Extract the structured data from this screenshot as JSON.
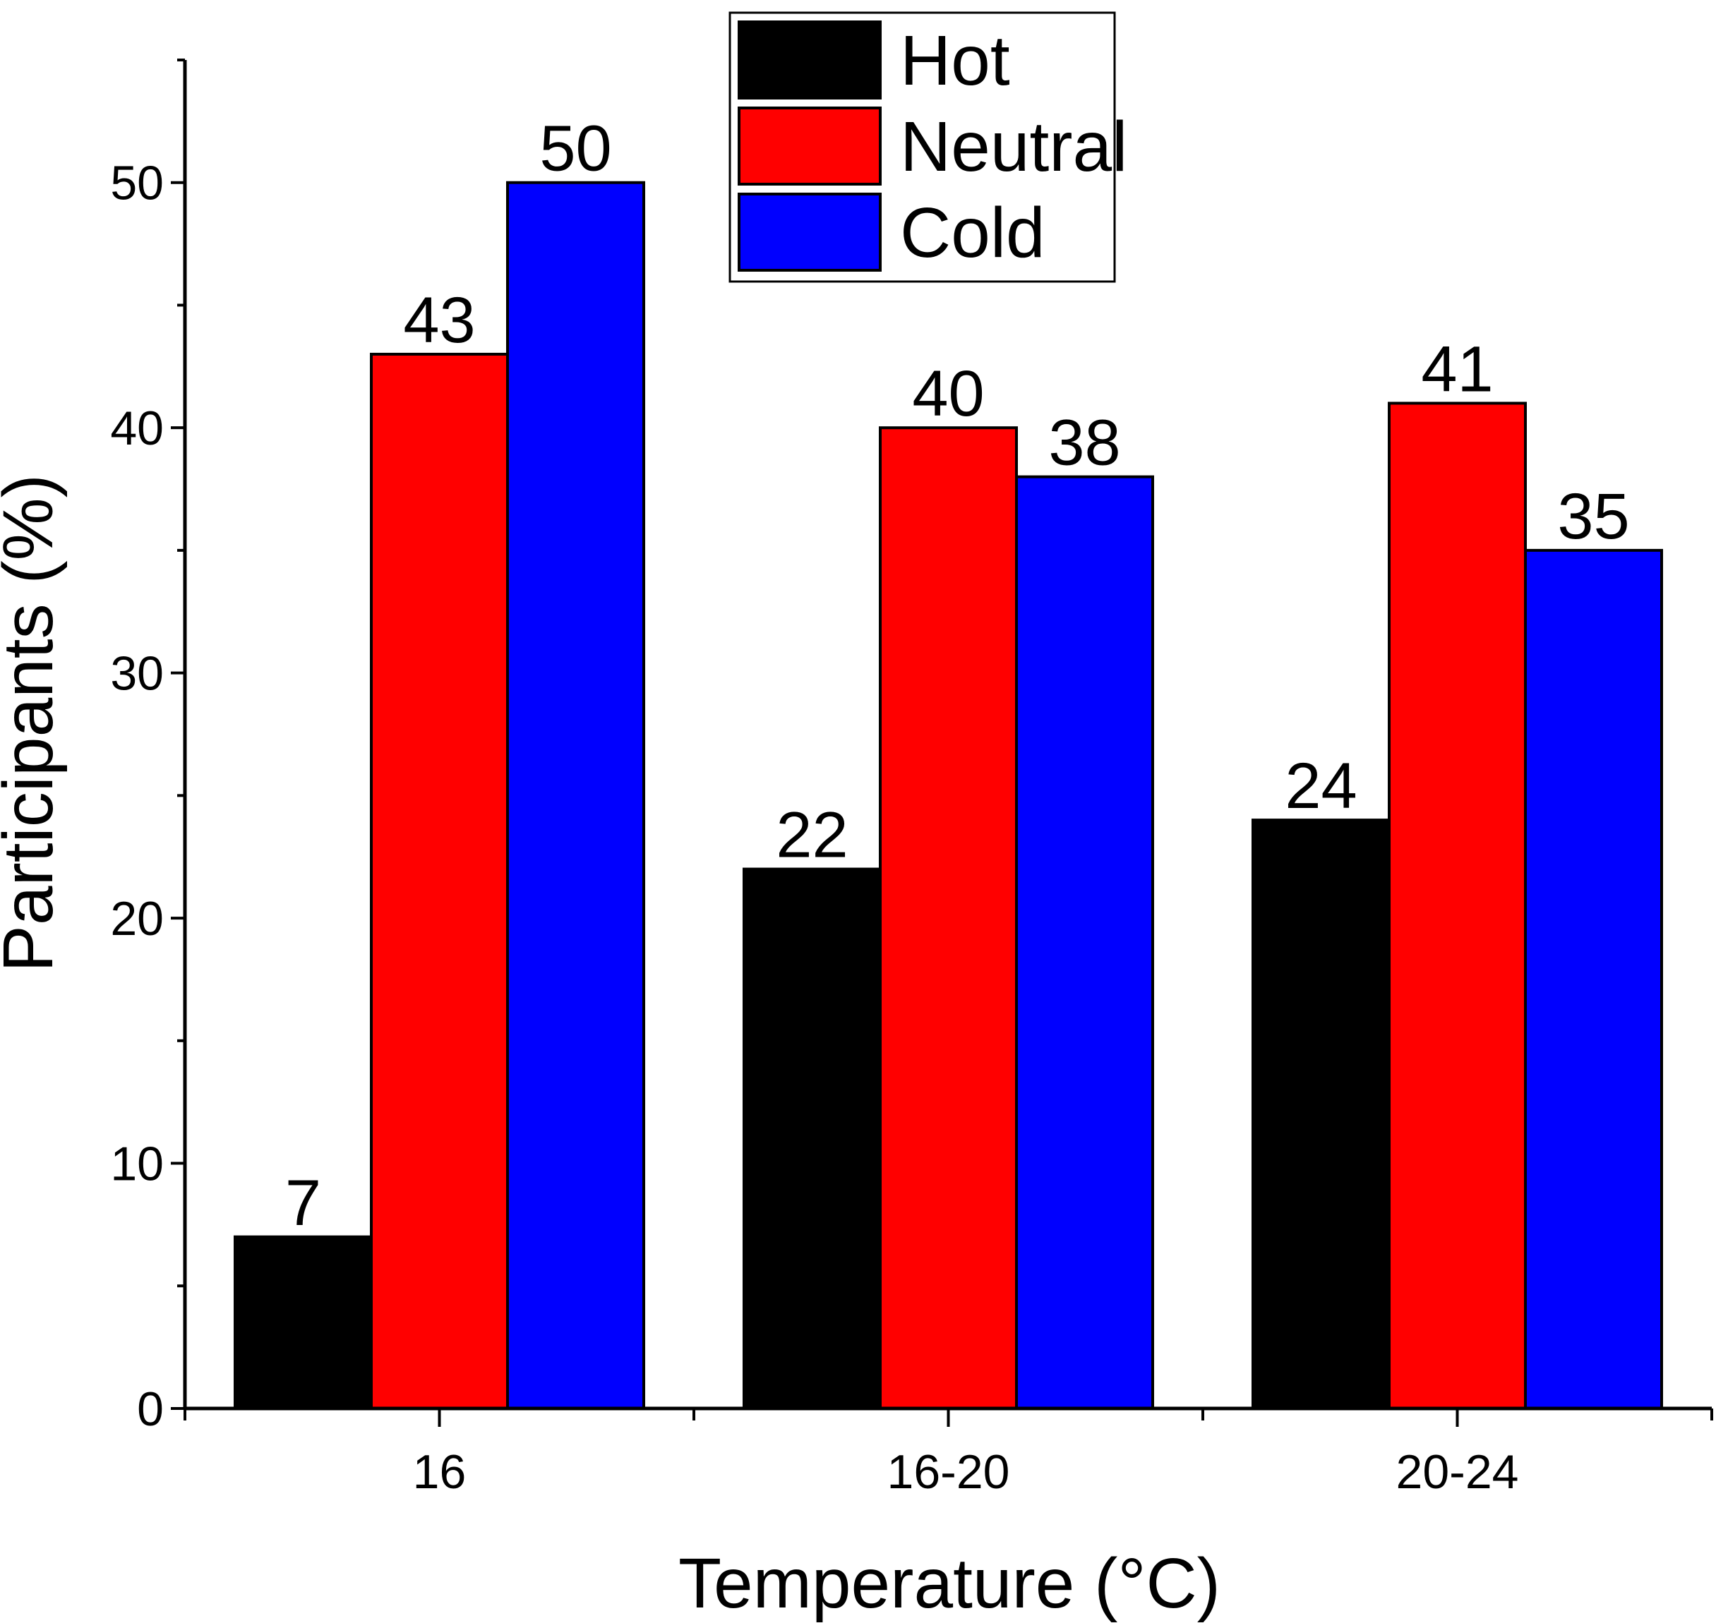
{
  "chart_data": {
    "type": "bar",
    "categories": [
      "16",
      "16-20",
      "20-24"
    ],
    "series": [
      {
        "name": "Hot",
        "color": "#000000",
        "values": [
          7,
          22,
          24
        ]
      },
      {
        "name": "Neutral",
        "color": "#ff0000",
        "values": [
          43,
          40,
          41
        ]
      },
      {
        "name": "Cold",
        "color": "#0000ff",
        "values": [
          50,
          38,
          35
        ]
      }
    ],
    "xlabel": "Temperature (°C)",
    "ylabel": "Participants (%)",
    "ylim": [
      0,
      55
    ],
    "yticks": [
      0,
      10,
      20,
      30,
      40,
      50
    ],
    "ytick_labels": [
      "0",
      "10",
      "20",
      "30",
      "40",
      "50"
    ],
    "minor_ytick_step": 5,
    "legend_position": "top-center",
    "grid": false
  }
}
